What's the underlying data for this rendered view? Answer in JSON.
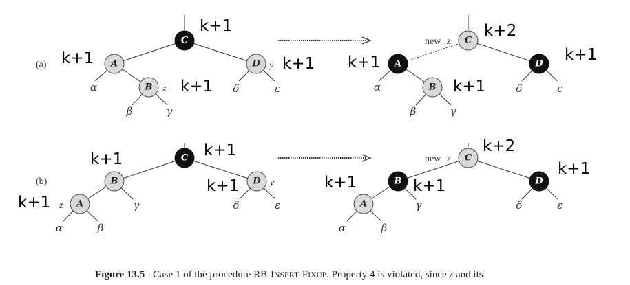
{
  "diagram": {
    "parts": [
      {
        "label": "(a)",
        "before": {
          "nodes": [
            {
              "id": "C",
              "label": "C",
              "color": "black"
            },
            {
              "id": "A",
              "label": "A",
              "color": "red"
            },
            {
              "id": "D",
              "label": "D",
              "color": "red"
            },
            {
              "id": "B",
              "label": "B",
              "color": "red"
            }
          ],
          "node_tags": [
            {
              "node": "D",
              "text": "y"
            },
            {
              "node": "B",
              "text": "z"
            }
          ],
          "subtrees": [
            "α",
            "β",
            "γ",
            "δ",
            "ε"
          ],
          "height_labels": [
            "k+1",
            "k+1",
            "k+1",
            "k+1"
          ]
        },
        "after": {
          "nodes": [
            {
              "id": "C",
              "label": "C",
              "color": "red"
            },
            {
              "id": "A",
              "label": "A",
              "color": "black"
            },
            {
              "id": "D",
              "label": "D",
              "color": "black"
            },
            {
              "id": "B",
              "label": "B",
              "color": "red"
            }
          ],
          "new_z_label": "new",
          "z_italic": "z",
          "subtrees": [
            "α",
            "β",
            "γ",
            "δ",
            "ε"
          ],
          "height_labels": [
            "k+2",
            "k+1",
            "k+1",
            "k+1"
          ]
        }
      },
      {
        "label": "(b)",
        "before": {
          "nodes": [
            {
              "id": "C",
              "label": "C",
              "color": "black"
            },
            {
              "id": "B",
              "label": "B",
              "color": "red"
            },
            {
              "id": "D",
              "label": "D",
              "color": "red"
            },
            {
              "id": "A",
              "label": "A",
              "color": "red"
            }
          ],
          "node_tags": [
            {
              "node": "D",
              "text": "y"
            },
            {
              "node": "A",
              "text": "z"
            }
          ],
          "subtrees": [
            "α",
            "β",
            "γ",
            "δ",
            "ε"
          ],
          "height_labels": [
            "k+1",
            "k+1",
            "k+1",
            "k+1"
          ]
        },
        "after": {
          "nodes": [
            {
              "id": "C",
              "label": "C",
              "color": "red"
            },
            {
              "id": "B",
              "label": "B",
              "color": "black"
            },
            {
              "id": "D",
              "label": "D",
              "color": "black"
            },
            {
              "id": "A",
              "label": "A",
              "color": "red"
            }
          ],
          "new_z_label": "new",
          "z_italic": "z",
          "subtrees": [
            "α",
            "β",
            "γ",
            "δ",
            "ε"
          ],
          "height_labels": [
            "k+2",
            "k+1",
            "k+1",
            "k+1"
          ]
        }
      }
    ],
    "colors": {
      "red_node_fill": "#d9d9d9",
      "black_node_fill": "#111111"
    }
  },
  "caption": {
    "prefix": "Figure 13.5",
    "text_1": "Case 1 of the procedure RB-I",
    "text_small_caps": "NSERT",
    "text_2": "-F",
    "text_small_caps_2": "IXUP",
    "text_3": ". Property 4 is violated, since ",
    "z": "z",
    "text_4": " and its"
  }
}
